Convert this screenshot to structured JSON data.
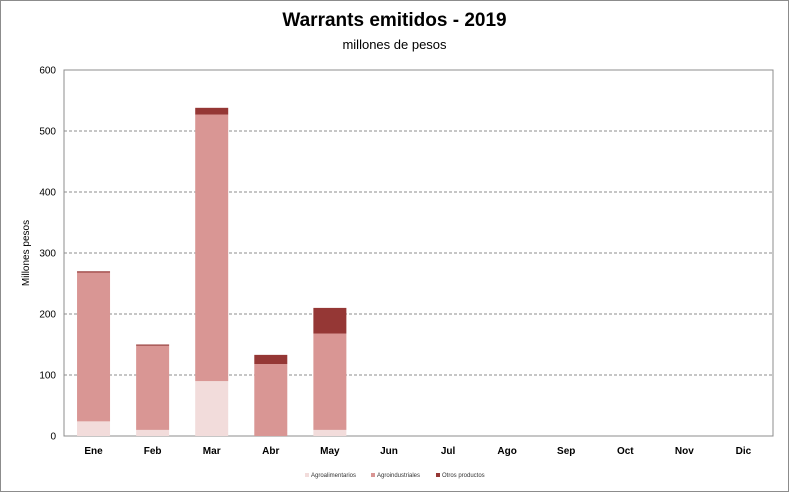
{
  "chart_data": {
    "type": "bar",
    "stacked": true,
    "title": "Warrants  emitidos  - 2019",
    "subtitle": "millones de pesos",
    "ylabel": "Millones pesos",
    "ylim": [
      0,
      600
    ],
    "yticks": [
      0,
      100,
      200,
      300,
      400,
      500,
      600
    ],
    "grid": true,
    "legend_position": "bottom",
    "categories": [
      "Ene",
      "Feb",
      "Mar",
      "Abr",
      "May",
      "Jun",
      "Jul",
      "Ago",
      "Sep",
      "Oct",
      "Nov",
      "Dic"
    ],
    "series": [
      {
        "name": "Agroalimentarios",
        "color": "#f2dcdb",
        "values": [
          24,
          10,
          90,
          0,
          10,
          null,
          null,
          null,
          null,
          null,
          null,
          null
        ]
      },
      {
        "name": "Agroindustriales",
        "color": "#d99694",
        "values": [
          244,
          138,
          437,
          118,
          158,
          null,
          null,
          null,
          null,
          null,
          null,
          null
        ]
      },
      {
        "name": "Otros productos",
        "color": "#953735",
        "values": [
          2,
          2,
          11,
          15,
          42,
          null,
          null,
          null,
          null,
          null,
          null,
          null
        ]
      }
    ]
  }
}
